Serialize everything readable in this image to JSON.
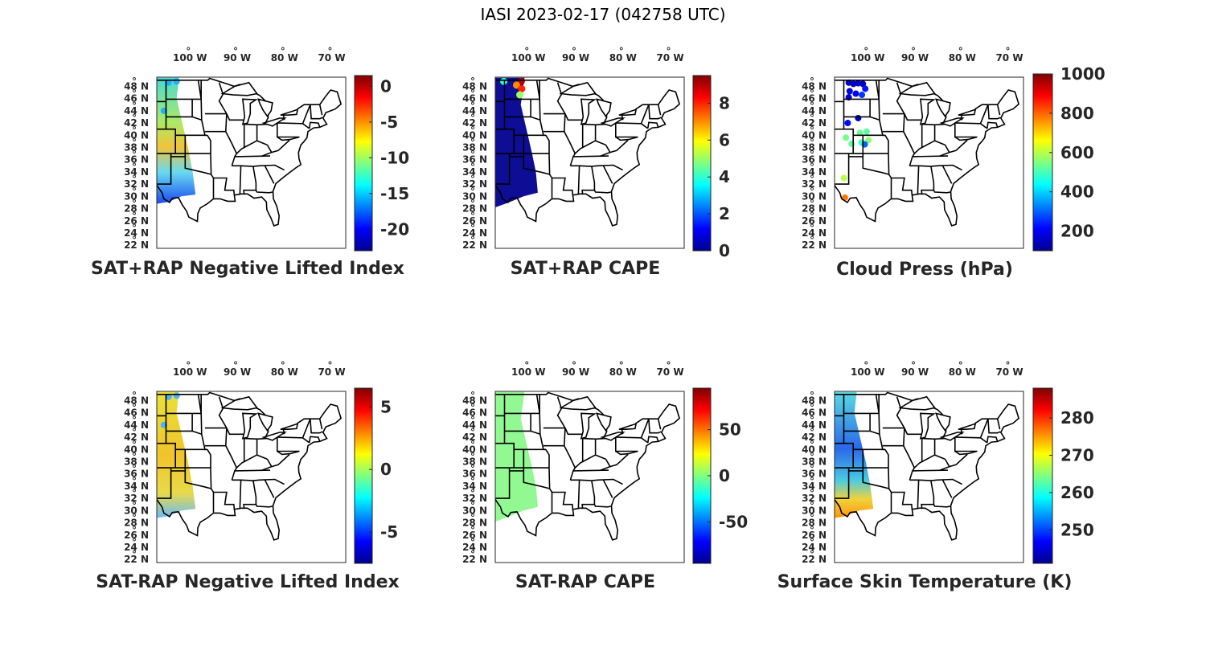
{
  "figure": {
    "title": "IASI 2023-02-17 (042758 UTC)",
    "colormap": "jet",
    "lon_ticks": [
      "100",
      "90",
      "80",
      "70"
    ],
    "lon_suffix": "W",
    "lat_ticks": [
      "48",
      "46",
      "44",
      "42",
      "40",
      "38",
      "36",
      "34",
      "32",
      "30",
      "28",
      "26",
      "24",
      "22"
    ],
    "lat_suffix": "N",
    "degree_mark": "°"
  },
  "chart_data": [
    {
      "type": "heatmap",
      "title": "SAT+RAP Negative Lifted Index",
      "colorbar": {
        "min": -23,
        "max": 1.5,
        "ticks": [
          0,
          -5,
          -10,
          -15,
          -20
        ],
        "tick_labels": [
          "0",
          "-5",
          "-10",
          "-15",
          "-20"
        ]
      },
      "swath_fill": "mixed: mostly -7 to -12, lower values near 30N",
      "swath_color": "#3fd8d0"
    },
    {
      "type": "heatmap",
      "title": "SAT+RAP CAPE",
      "colorbar": {
        "min": 0,
        "max": 9.5,
        "ticks": [
          8,
          6,
          4,
          2,
          0
        ],
        "tick_labels": [
          "8",
          "6",
          "4",
          "2",
          "0"
        ]
      },
      "swath_color": "#00008f"
    },
    {
      "type": "scatter",
      "title": "Cloud Press (hPa)",
      "colorbar": {
        "min": 100,
        "max": 1000,
        "ticks": [
          1000,
          800,
          600,
          400,
          200
        ],
        "tick_labels": [
          "1000",
          "800",
          "600",
          "400",
          "200"
        ]
      },
      "points": [
        {
          "lon": -103,
          "lat": 48.6,
          "value": 150
        },
        {
          "lon": -102,
          "lat": 48.4,
          "value": 160
        },
        {
          "lon": -101,
          "lat": 48.5,
          "value": 170
        },
        {
          "lon": -100,
          "lat": 48.4,
          "value": 160
        },
        {
          "lon": -99.5,
          "lat": 47.6,
          "value": 230
        },
        {
          "lon": -102.8,
          "lat": 47.2,
          "value": 180
        },
        {
          "lon": -101.5,
          "lat": 46.8,
          "value": 200
        },
        {
          "lon": -103,
          "lat": 46.2,
          "value": 170
        },
        {
          "lon": -100.2,
          "lat": 46.6,
          "value": 260
        },
        {
          "lon": -101,
          "lat": 42.8,
          "value": 150
        },
        {
          "lon": -103.2,
          "lat": 42.0,
          "value": 220
        },
        {
          "lon": -99.2,
          "lat": 40.6,
          "value": 520
        },
        {
          "lon": -100.6,
          "lat": 40.4,
          "value": 530
        },
        {
          "lon": -98.8,
          "lat": 39.2,
          "value": 560
        },
        {
          "lon": -100.3,
          "lat": 38.8,
          "value": 500
        },
        {
          "lon": -102.4,
          "lat": 38.6,
          "value": 520
        },
        {
          "lon": -103.6,
          "lat": 39.6,
          "value": 540
        },
        {
          "lon": -99.6,
          "lat": 38.5,
          "value": 300
        },
        {
          "lon": -104,
          "lat": 33.0,
          "value": 600
        },
        {
          "lon": -103.8,
          "lat": 29.8,
          "value": 780
        }
      ]
    },
    {
      "type": "heatmap",
      "title": "SAT-RAP Negative Lifted Index",
      "colorbar": {
        "min": -7.5,
        "max": 6.5,
        "ticks": [
          5,
          0,
          -5
        ],
        "tick_labels": [
          "5",
          "0",
          "-5"
        ]
      },
      "swath_fill": "mostly 1 to 3 (yellow-orange)",
      "swath_color": "#e8d830"
    },
    {
      "type": "heatmap",
      "title": "SAT-RAP CAPE",
      "colorbar": {
        "min": -95,
        "max": 95,
        "ticks": [
          50,
          0,
          -50
        ],
        "tick_labels": [
          "50",
          "0",
          "-50"
        ]
      },
      "swath_fill": "≈0 everywhere",
      "swath_color": "#8cf88c"
    },
    {
      "type": "heatmap",
      "title": "Surface Skin Temperature (K)",
      "colorbar": {
        "min": 241,
        "max": 288,
        "ticks": [
          280,
          270,
          260,
          250
        ],
        "tick_labels": [
          "280",
          "270",
          "260",
          "250"
        ]
      },
      "swath_fill": "≈255-262 K north, ≈270-278 K south",
      "swath_color": "#40c8e8"
    }
  ]
}
